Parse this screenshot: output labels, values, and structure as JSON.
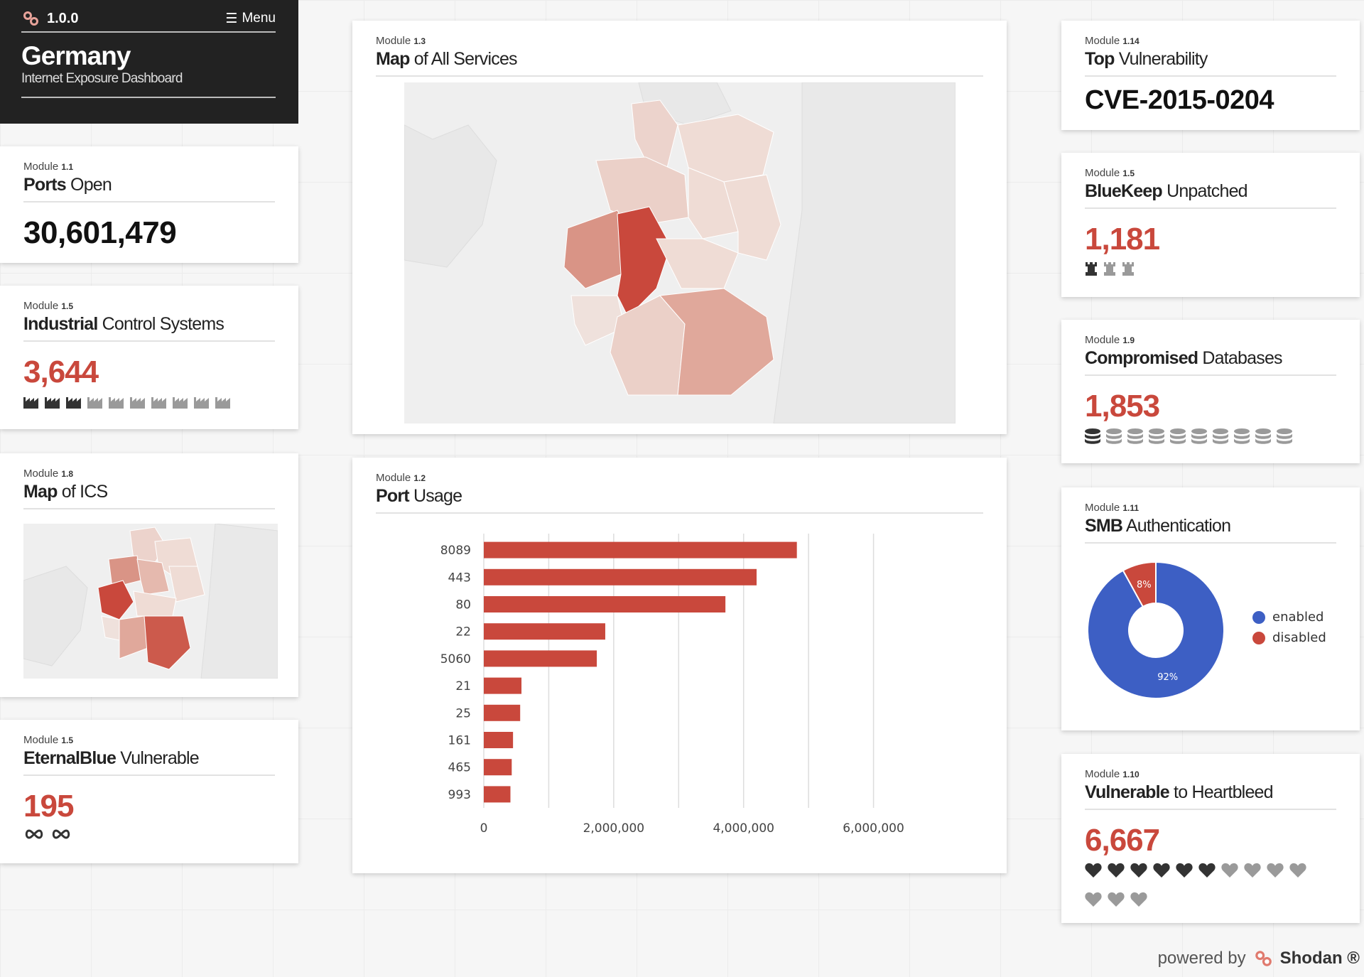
{
  "header": {
    "version": "1.0.0",
    "menu_label": "Menu",
    "country": "Germany",
    "subtitle": "Internet Exposure Dashboard"
  },
  "ports_open": {
    "module_prefix": "Module",
    "module_id": "1.1",
    "title_bold": "Ports",
    "title_rest": " Open",
    "value": "30,601,479"
  },
  "ics": {
    "module_prefix": "Module",
    "module_id": "1.5",
    "title_bold": "Industrial",
    "title_rest": " Control Systems",
    "value": "3,644",
    "icon": "factory-icon",
    "icons_dark": 3,
    "icons_total": 10
  },
  "map_ics": {
    "module_prefix": "Module",
    "module_id": "1.8",
    "title_bold": "Map",
    "title_rest": " of ICS"
  },
  "eternalblue": {
    "module_prefix": "Module",
    "module_id": "1.5",
    "title_bold": "EternalBlue",
    "title_rest": " Vulnerable",
    "value": "195",
    "icon": "infinity-icon",
    "icons_total": 2
  },
  "map_services": {
    "module_prefix": "Module",
    "module_id": "1.3",
    "title_bold": "Map",
    "title_rest": " of All Services"
  },
  "port_usage": {
    "module_prefix": "Module",
    "module_id": "1.2",
    "title_bold": "Port",
    "title_rest": " Usage"
  },
  "top_vuln": {
    "module_prefix": "Module",
    "module_id": "1.14",
    "title_bold": "Top",
    "title_rest": " Vulnerability",
    "value": "CVE-2015-0204"
  },
  "bluekeep": {
    "module_prefix": "Module",
    "module_id": "1.5",
    "title_bold": "BlueKeep",
    "title_rest": " Unpatched",
    "value": "1,181",
    "icon": "rook-icon",
    "icons_dark": 1,
    "icons_total": 3
  },
  "databases": {
    "module_prefix": "Module",
    "module_id": "1.9",
    "title_bold": "Compromised",
    "title_rest": " Databases",
    "value": "1,853",
    "icon": "database-icon",
    "icons_dark": 1,
    "icons_total": 10
  },
  "smb": {
    "module_prefix": "Module",
    "module_id": "1.11",
    "title_bold": "SMB",
    "title_rest": " Authentication",
    "legend": [
      {
        "label": "enabled",
        "color": "#3d5fc4"
      },
      {
        "label": "disabled",
        "color": "#c9483c"
      }
    ]
  },
  "heartbleed": {
    "module_prefix": "Module",
    "module_id": "1.10",
    "title_bold": "Vulnerable",
    "title_rest": " to Heartbleed",
    "value": "6,667",
    "icon": "heart-icon",
    "icons_dark": 6,
    "icons_total": 13
  },
  "footer": {
    "powered_by": "powered by",
    "brand": "Shodan ®"
  },
  "colors": {
    "accent_red": "#c9483c",
    "dark_icon": "#333333",
    "light_icon": "#9a9a9a"
  },
  "chart_data": [
    {
      "type": "bar",
      "orientation": "horizontal",
      "categories": [
        "8089",
        "443",
        "80",
        "22",
        "5060",
        "21",
        "25",
        "161",
        "465",
        "993"
      ],
      "values": [
        4820000,
        4200000,
        3720000,
        1870000,
        1740000,
        580000,
        560000,
        450000,
        430000,
        410000
      ],
      "xticks": [
        "0",
        "2,000,000",
        "4,000,000",
        "6,000,000"
      ],
      "xlim": [
        0,
        7000000
      ],
      "grid": true,
      "color": "#c9483c"
    },
    {
      "type": "pie",
      "labels": [
        "enabled",
        "disabled"
      ],
      "values": [
        92,
        8
      ],
      "slice_labels": [
        "92%",
        "8%"
      ],
      "donut": true,
      "legend": "right"
    }
  ]
}
